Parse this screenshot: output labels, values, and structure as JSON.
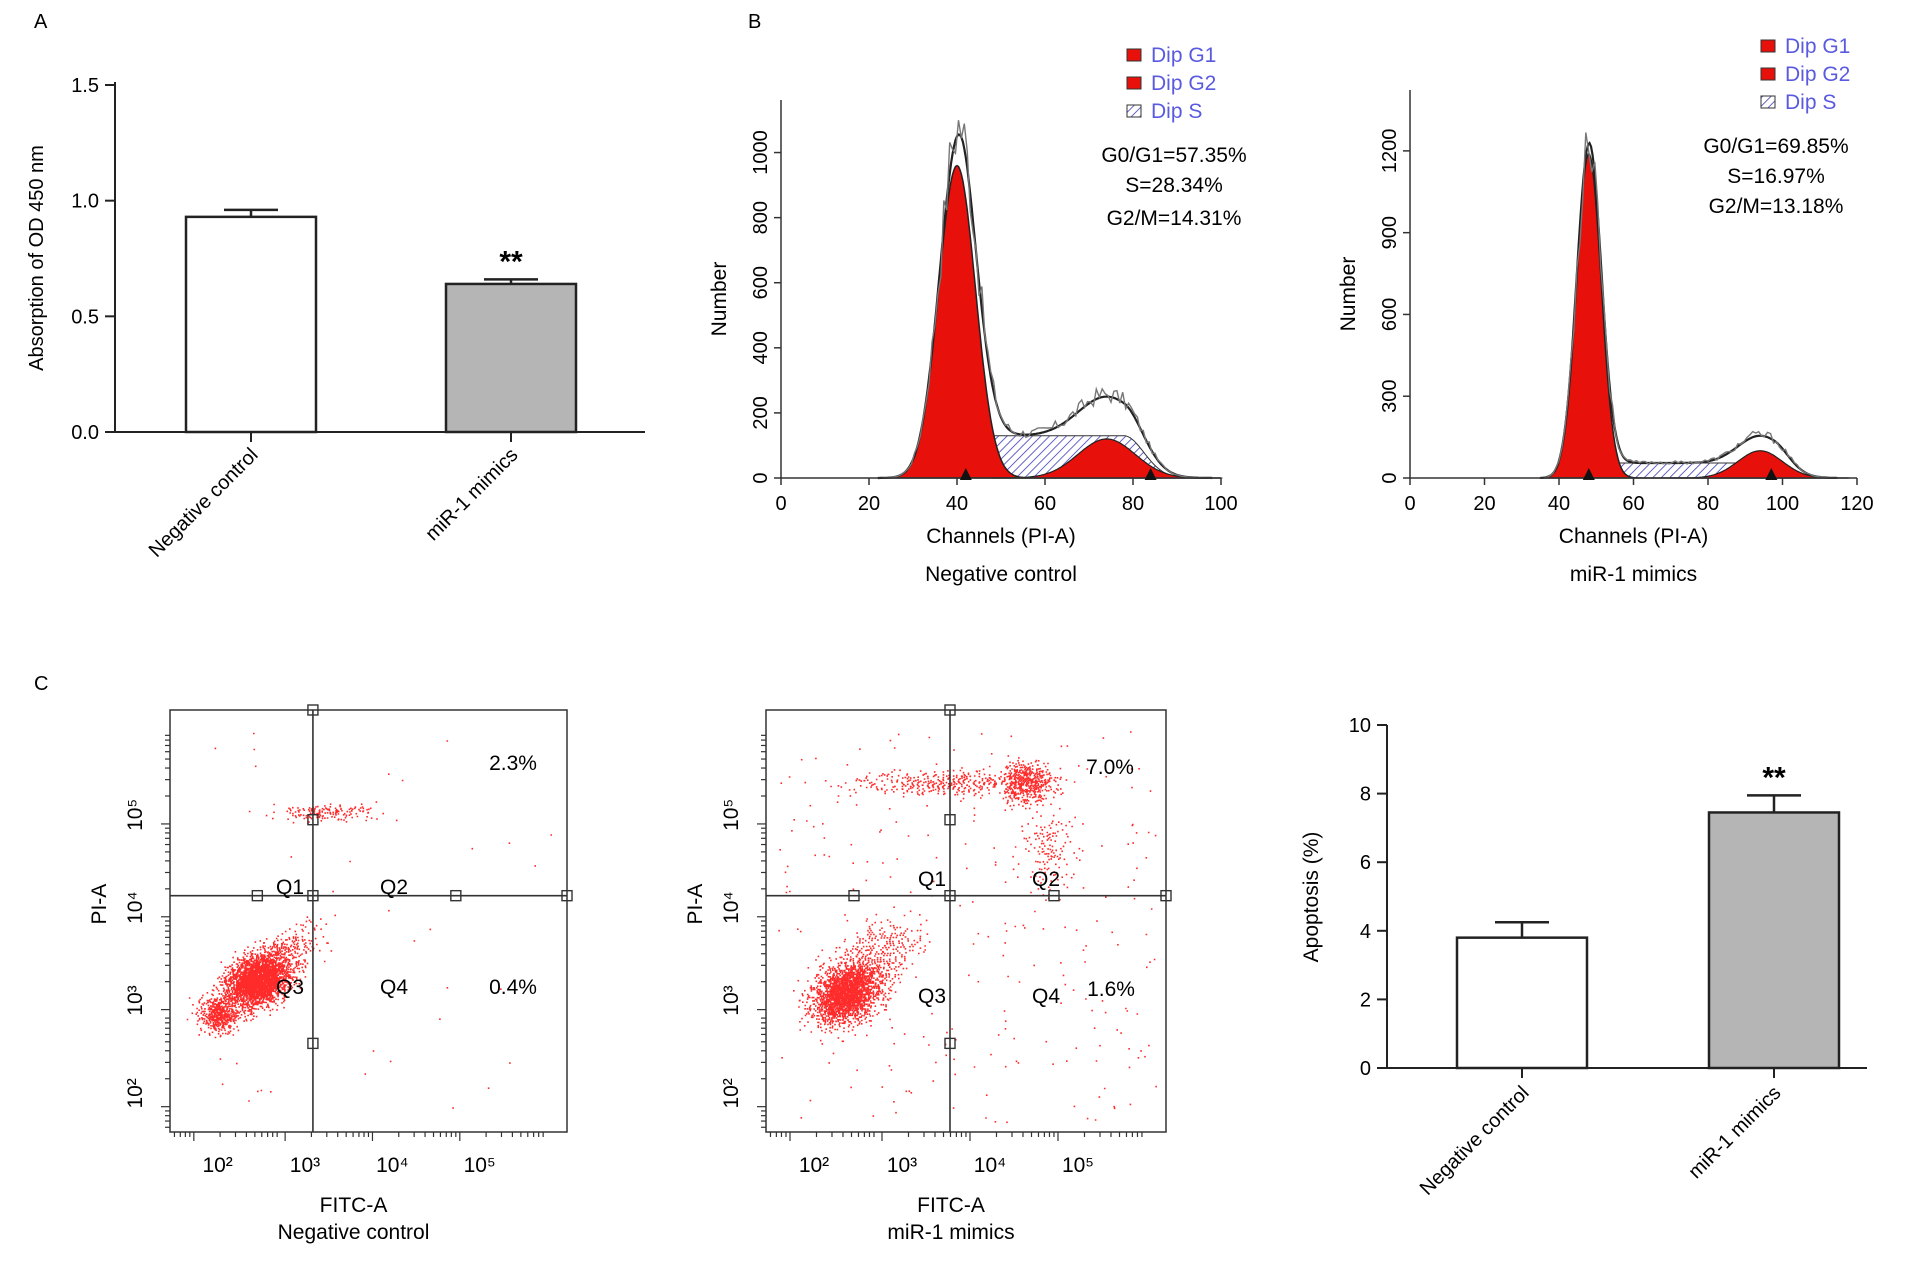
{
  "colors": {
    "axis": "#222222",
    "red": "#e8100a",
    "dark_red": "#a8090d",
    "grey_bar": "#b5b5b5",
    "legend_text": "#5a5ae0",
    "hatch": "#3a3ab8",
    "dot": "#ff2a2a"
  },
  "panel_labels": {
    "a": "A",
    "b": "B",
    "c": "C"
  },
  "chart_data": [
    {
      "id": "A",
      "type": "bar",
      "title": "",
      "ylabel": "Absorption of OD 450 nm",
      "xlabel": "",
      "categories": [
        "Negative control",
        "miR-1 mimics"
      ],
      "values": [
        0.93,
        0.64
      ],
      "errors": [
        0.03,
        0.02
      ],
      "ylim": [
        0,
        1.5
      ],
      "yticks": [
        "0.0",
        "0.5",
        "1.0",
        "1.5"
      ],
      "significance": [
        "",
        "**"
      ]
    },
    {
      "id": "B1",
      "type": "area",
      "title": "Negative control",
      "xlabel": "Channels (PI-A)",
      "ylabel": "Number",
      "xlim": [
        0,
        100
      ],
      "ylim": [
        0,
        1100
      ],
      "xticks": [
        "0",
        "20",
        "40",
        "60",
        "80",
        "100"
      ],
      "yticks": [
        "0",
        "200",
        "400",
        "600",
        "800",
        "1000"
      ],
      "legend": [
        "Dip G1",
        "Dip G2",
        "Dip S"
      ],
      "stats": [
        "G0/G1=57.35%",
        "S=28.34%",
        "G2/M=14.31%"
      ],
      "peaks": {
        "g1_center": 40,
        "g1_height": 960,
        "g2_center": 74,
        "g2_height": 120,
        "s_height": 130
      },
      "markers": [
        42,
        84
      ]
    },
    {
      "id": "B2",
      "type": "area",
      "title": "miR-1 mimics",
      "xlabel": "Channels (PI-A)",
      "ylabel": "Number",
      "xlim": [
        0,
        120
      ],
      "ylim": [
        0,
        1350
      ],
      "xticks": [
        "0",
        "20",
        "40",
        "60",
        "80",
        "100",
        "120"
      ],
      "yticks": [
        "0",
        "300",
        "600",
        "900",
        "1200"
      ],
      "legend": [
        "Dip G1",
        "Dip G2",
        "Dip S"
      ],
      "stats": [
        "G0/G1=69.85%",
        "S=16.97%",
        "G2/M=13.18%"
      ],
      "peaks": {
        "g1_center": 48,
        "g1_height": 1190,
        "g2_center": 94,
        "g2_height": 100,
        "s_height": 55
      },
      "markers": [
        48,
        97
      ]
    },
    {
      "id": "C1",
      "type": "scatter",
      "title": "Negative control",
      "xlabel": "FITC-A",
      "ylabel": "PI-A",
      "quadrants": [
        "Q1",
        "Q2",
        "Q3",
        "Q4"
      ],
      "percent_q2": "2.3%",
      "percent_q4": "0.4%",
      "xticks": [
        "10²",
        "10³",
        "10⁴",
        "10⁵"
      ],
      "yticks": [
        "10²",
        "10³",
        "10⁴",
        "10⁵"
      ]
    },
    {
      "id": "C2",
      "type": "scatter",
      "title": "miR-1 mimics",
      "xlabel": "FITC-A",
      "ylabel": "PI-A",
      "quadrants": [
        "Q1",
        "Q2",
        "Q3",
        "Q4"
      ],
      "percent_q2": "7.0%",
      "percent_q4": "1.6%",
      "xticks": [
        "10²",
        "10³",
        "10⁴",
        "10⁵"
      ],
      "yticks": [
        "10²",
        "10³",
        "10⁴",
        "10⁵"
      ]
    },
    {
      "id": "C3",
      "type": "bar",
      "title": "",
      "ylabel": "Apoptosis (%)",
      "xlabel": "",
      "categories": [
        "Negative control",
        "miR-1 mimics"
      ],
      "values": [
        3.8,
        7.45
      ],
      "errors": [
        0.45,
        0.5
      ],
      "ylim": [
        0,
        10
      ],
      "yticks": [
        "0",
        "2",
        "4",
        "6",
        "8",
        "10"
      ],
      "significance": [
        "",
        "**"
      ]
    }
  ]
}
